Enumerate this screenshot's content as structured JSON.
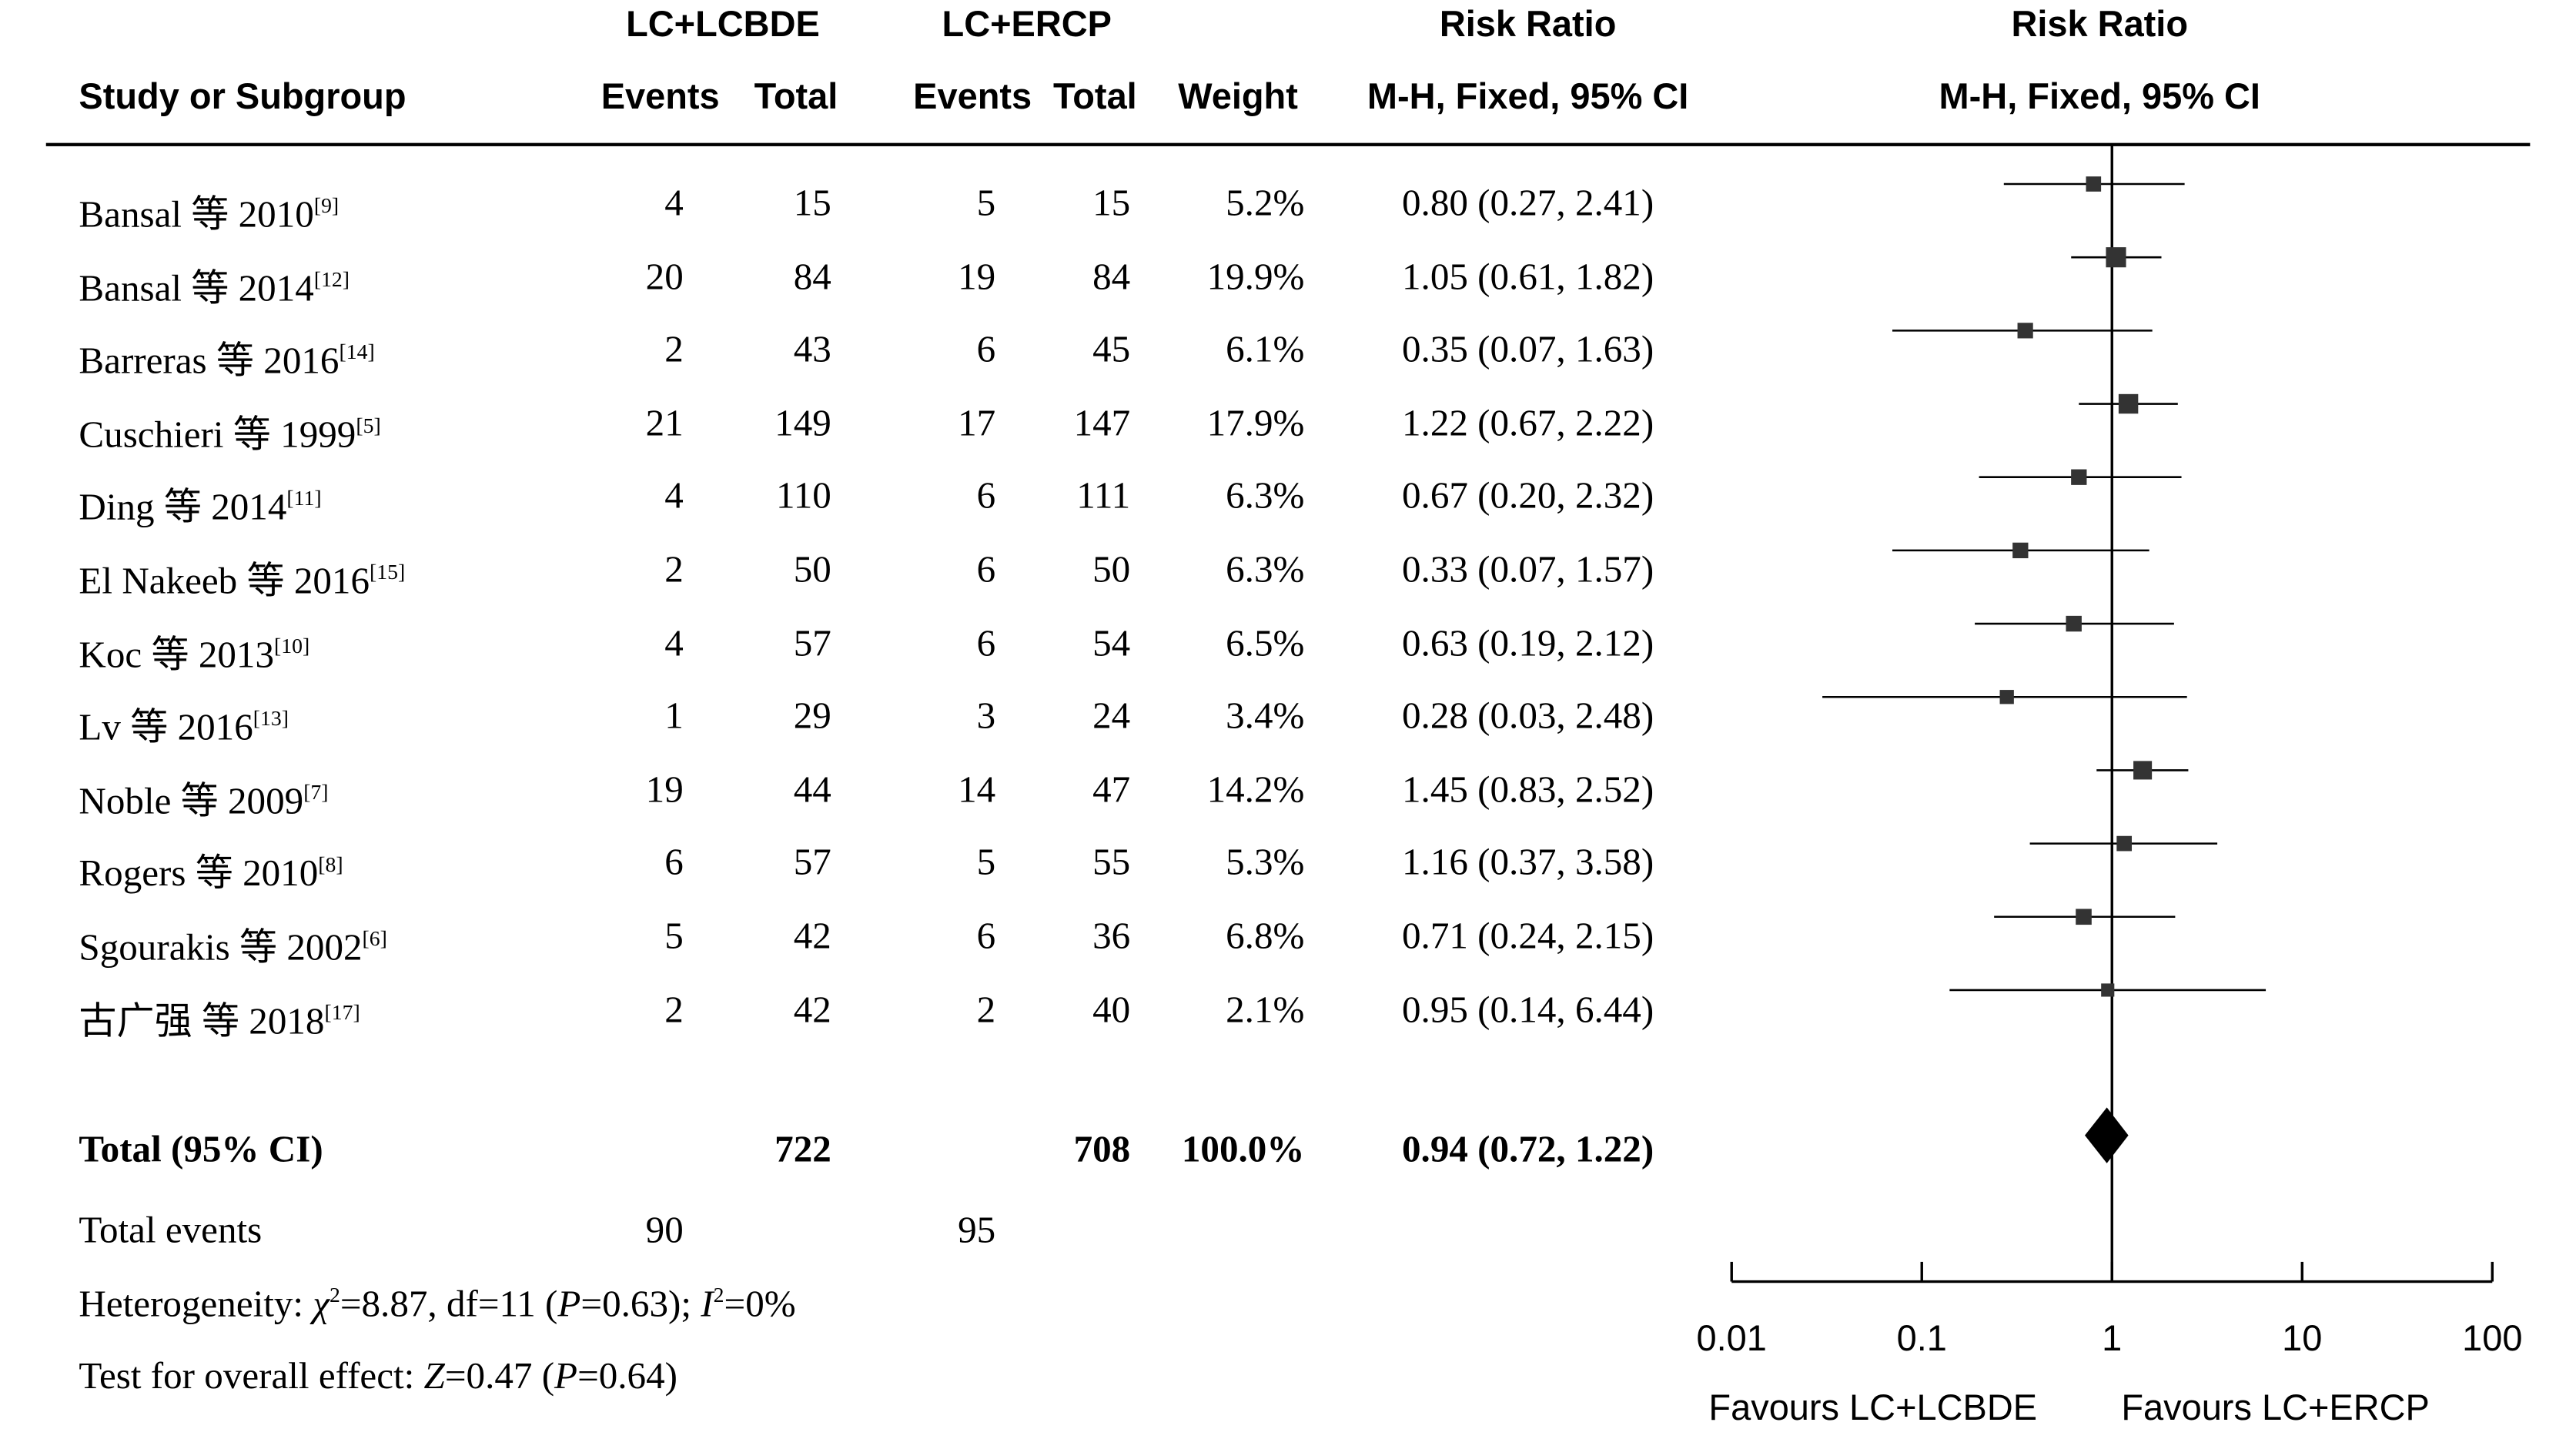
{
  "headers": {
    "group1": "LC+LCBDE",
    "group2": "LC+ERCP",
    "study": "Study or Subgroup",
    "events1": "Events",
    "total1": "Total",
    "events2": "Events",
    "total2": "Total",
    "weight": "Weight",
    "rr_title": "Risk Ratio",
    "rr_method": "M-H, Fixed, 95% CI",
    "plot_title": "Risk Ratio",
    "plot_method": "M-H, Fixed, 95% CI"
  },
  "chart_data": {
    "type": "forest",
    "x_scale": "log",
    "xlim": [
      0.01,
      100
    ],
    "null_value": 1,
    "ticks": [
      {
        "value": 0.01,
        "label": "0.01"
      },
      {
        "value": 0.1,
        "label": "0.1"
      },
      {
        "value": 1,
        "label": "1"
      },
      {
        "value": 10,
        "label": "10"
      },
      {
        "value": 100,
        "label": "100"
      }
    ],
    "favours_left": "Favours LC+LCBDE",
    "favours_right": "Favours LC+ERCP",
    "studies": [
      {
        "name": "Bansal 等 2010",
        "ref": "[9]",
        "events1": "4",
        "total1": "15",
        "events2": "5",
        "total2": "15",
        "weight_label": "5.2%",
        "weight": 5.2,
        "rr": 0.8,
        "lo": 0.27,
        "hi": 2.41,
        "ci_label": "0.80 (0.27, 2.41)"
      },
      {
        "name": "Bansal 等 2014",
        "ref": "[12]",
        "events1": "20",
        "total1": "84",
        "events2": "19",
        "total2": "84",
        "weight_label": "19.9%",
        "weight": 19.9,
        "rr": 1.05,
        "lo": 0.61,
        "hi": 1.82,
        "ci_label": "1.05 (0.61, 1.82)"
      },
      {
        "name": "Barreras 等 2016",
        "ref": "[14]",
        "events1": "2",
        "total1": "43",
        "events2": "6",
        "total2": "45",
        "weight_label": "6.1%",
        "weight": 6.1,
        "rr": 0.35,
        "lo": 0.07,
        "hi": 1.63,
        "ci_label": "0.35 (0.07, 1.63)"
      },
      {
        "name": "Cuschieri 等 1999",
        "ref": "[5]",
        "events1": "21",
        "total1": "149",
        "events2": "17",
        "total2": "147",
        "weight_label": "17.9%",
        "weight": 17.9,
        "rr": 1.22,
        "lo": 0.67,
        "hi": 2.22,
        "ci_label": "1.22 (0.67, 2.22)"
      },
      {
        "name": "Ding 等 2014",
        "ref": "[11]",
        "events1": "4",
        "total1": "110",
        "events2": "6",
        "total2": "111",
        "weight_label": "6.3%",
        "weight": 6.3,
        "rr": 0.67,
        "lo": 0.2,
        "hi": 2.32,
        "ci_label": "0.67 (0.20, 2.32)"
      },
      {
        "name": "El Nakeeb 等 2016",
        "ref": "[15]",
        "events1": "2",
        "total1": "50",
        "events2": "6",
        "total2": "50",
        "weight_label": "6.3%",
        "weight": 6.3,
        "rr": 0.33,
        "lo": 0.07,
        "hi": 1.57,
        "ci_label": "0.33 (0.07, 1.57)"
      },
      {
        "name": "Koc 等 2013",
        "ref": "[10]",
        "events1": "4",
        "total1": "57",
        "events2": "6",
        "total2": "54",
        "weight_label": "6.5%",
        "weight": 6.5,
        "rr": 0.63,
        "lo": 0.19,
        "hi": 2.12,
        "ci_label": "0.63 (0.19, 2.12)"
      },
      {
        "name": "Lv 等 2016",
        "ref": "[13]",
        "events1": "1",
        "total1": "29",
        "events2": "3",
        "total2": "24",
        "weight_label": "3.4%",
        "weight": 3.4,
        "rr": 0.28,
        "lo": 0.03,
        "hi": 2.48,
        "ci_label": "0.28 (0.03, 2.48)"
      },
      {
        "name": "Noble 等 2009",
        "ref": "[7]",
        "events1": "19",
        "total1": "44",
        "events2": "14",
        "total2": "47",
        "weight_label": "14.2%",
        "weight": 14.2,
        "rr": 1.45,
        "lo": 0.83,
        "hi": 2.52,
        "ci_label": "1.45 (0.83, 2.52)"
      },
      {
        "name": "Rogers 等 2010",
        "ref": "[8]",
        "events1": "6",
        "total1": "57",
        "events2": "5",
        "total2": "55",
        "weight_label": "5.3%",
        "weight": 5.3,
        "rr": 1.16,
        "lo": 0.37,
        "hi": 3.58,
        "ci_label": "1.16 (0.37, 3.58)"
      },
      {
        "name": "Sgourakis 等 2002",
        "ref": "[6]",
        "events1": "5",
        "total1": "42",
        "events2": "6",
        "total2": "36",
        "weight_label": "6.8%",
        "weight": 6.8,
        "rr": 0.71,
        "lo": 0.24,
        "hi": 2.15,
        "ci_label": "0.71 (0.24, 2.15)"
      },
      {
        "name": "古广强 等 2018",
        "ref": "[17]",
        "events1": "2",
        "total1": "42",
        "events2": "2",
        "total2": "40",
        "weight_label": "2.1%",
        "weight": 2.1,
        "rr": 0.95,
        "lo": 0.14,
        "hi": 6.44,
        "ci_label": "0.95 (0.14, 6.44)"
      }
    ],
    "total": {
      "label": "Total (95% CI)",
      "total1": "722",
      "total2": "708",
      "weight_label": "100.0%",
      "rr": 0.94,
      "lo": 0.72,
      "hi": 1.22,
      "ci_label": "0.94 (0.72, 1.22)"
    },
    "total_events": {
      "label": "Total events",
      "events1": "90",
      "events2": "95"
    },
    "heterogeneity": {
      "prefix": "Heterogeneity: ",
      "chi_symbol": "χ",
      "chi_value": "=8.87, df=11 (",
      "p_symbol": "P",
      "p_value": "=0.63); ",
      "i_symbol": "I",
      "i_value": "=0%"
    },
    "overall_effect": {
      "prefix": "Test for overall effect: ",
      "z_symbol": "Z",
      "z_value": "=0.47 (",
      "p_symbol": "P",
      "p_value": "=0.64)"
    }
  }
}
